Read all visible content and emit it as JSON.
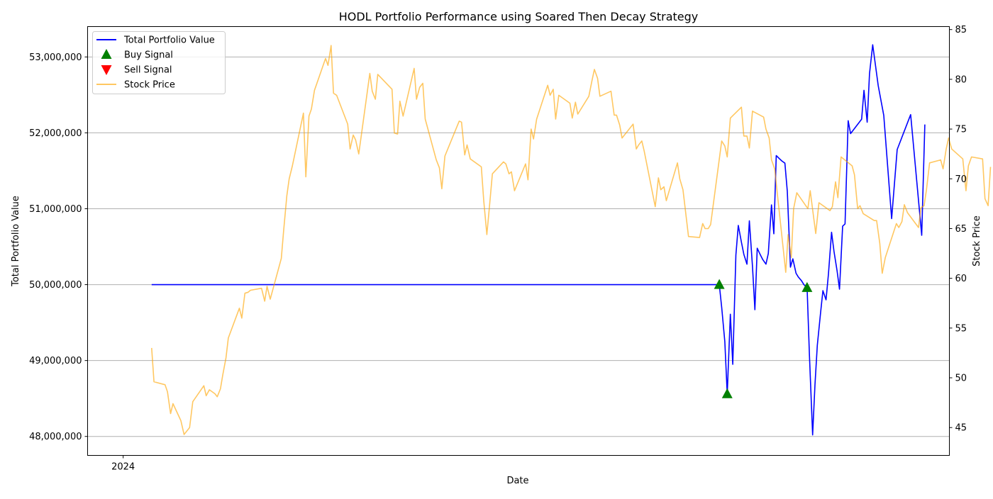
{
  "chart_data": {
    "type": "line",
    "title": "HODL Portfolio Performance using Soared Then Decay Strategy",
    "xlabel": "Date",
    "ylabel": "Total Portfolio Value",
    "ylabel_right": "Stock Price",
    "x_tick_labels": [
      "2024"
    ],
    "ylim": [
      47750000,
      53400000
    ],
    "ylim_right": [
      42.2,
      85.3
    ],
    "y_ticks": [
      48000000,
      49000000,
      50000000,
      51000000,
      52000000,
      53000000
    ],
    "y_tick_labels": [
      "48,000,000",
      "49,000,000",
      "50,000,000",
      "51,000,000",
      "52,000,000",
      "53,000,000"
    ],
    "y_right_ticks": [
      45,
      50,
      55,
      60,
      65,
      70,
      75,
      80,
      85
    ],
    "y_right_tick_labels": [
      "45",
      "50",
      "55",
      "60",
      "65",
      "70",
      "75",
      "80",
      "85"
    ],
    "xlim": [
      -0.045,
      1.045
    ],
    "grid": "horizontal",
    "legend_position": "top-left",
    "legend": [
      {
        "label": "Total Portfolio Value",
        "color": "#0000ff",
        "kind": "line"
      },
      {
        "label": "Buy Signal",
        "color": "#008000",
        "kind": "triangle-up"
      },
      {
        "label": "Sell Signal",
        "color": "#ff0000",
        "kind": "triangle-down"
      },
      {
        "label": "Stock Price",
        "color": "#ffa500",
        "kind": "line"
      }
    ],
    "series": [
      {
        "name": "Total Portfolio Value",
        "axis": "left",
        "color": "#0000ff",
        "points": [
          [
            0.036,
            50000000
          ],
          [
            0.754,
            50000000
          ],
          [
            0.757,
            49700000
          ],
          [
            0.761,
            49250000
          ],
          [
            0.764,
            48560000
          ],
          [
            0.768,
            49610000
          ],
          [
            0.771,
            48950000
          ],
          [
            0.775,
            50390000
          ],
          [
            0.778,
            50780000
          ],
          [
            0.782,
            50560000
          ],
          [
            0.785,
            50400000
          ],
          [
            0.789,
            50270000
          ],
          [
            0.792,
            50840000
          ],
          [
            0.796,
            50240000
          ],
          [
            0.799,
            49670000
          ],
          [
            0.802,
            50480000
          ],
          [
            0.806,
            50390000
          ],
          [
            0.809,
            50330000
          ],
          [
            0.813,
            50270000
          ],
          [
            0.816,
            50410000
          ],
          [
            0.82,
            51050000
          ],
          [
            0.823,
            50670000
          ],
          [
            0.826,
            51700000
          ],
          [
            0.83,
            51660000
          ],
          [
            0.833,
            51630000
          ],
          [
            0.837,
            51600000
          ],
          [
            0.84,
            51230000
          ],
          [
            0.844,
            50230000
          ],
          [
            0.847,
            50340000
          ],
          [
            0.851,
            50150000
          ],
          [
            0.854,
            50100000
          ],
          [
            0.858,
            50050000
          ],
          [
            0.861,
            50000000
          ],
          [
            0.865,
            49960000
          ],
          [
            0.868,
            49070000
          ],
          [
            0.872,
            48020000
          ],
          [
            0.875,
            48680000
          ],
          [
            0.878,
            49200000
          ],
          [
            0.882,
            49620000
          ],
          [
            0.885,
            49920000
          ],
          [
            0.889,
            49800000
          ],
          [
            0.892,
            50140000
          ],
          [
            0.896,
            50690000
          ],
          [
            0.899,
            50440000
          ],
          [
            0.903,
            50180000
          ],
          [
            0.906,
            49940000
          ],
          [
            0.91,
            50770000
          ],
          [
            0.913,
            50800000
          ],
          [
            0.917,
            52160000
          ],
          [
            0.92,
            51990000
          ],
          [
            0.934,
            52180000
          ],
          [
            0.937,
            52560000
          ],
          [
            0.941,
            52140000
          ],
          [
            0.944,
            52780000
          ],
          [
            0.948,
            53160000
          ],
          [
            0.955,
            52620000
          ],
          [
            0.962,
            52230000
          ],
          [
            0.972,
            50870000
          ],
          [
            0.979,
            51780000
          ],
          [
            0.996,
            52240000
          ],
          [
            1.01,
            50650000
          ],
          [
            1.014,
            52110000
          ]
        ]
      },
      {
        "name": "Stock Price",
        "axis": "right",
        "color": "#ffa500",
        "points": [
          [
            0.036,
            53.0
          ],
          [
            0.039,
            49.6
          ],
          [
            0.053,
            49.3
          ],
          [
            0.056,
            48.6
          ],
          [
            0.06,
            46.4
          ],
          [
            0.063,
            47.4
          ],
          [
            0.073,
            45.7
          ],
          [
            0.077,
            44.3
          ],
          [
            0.084,
            45.0
          ],
          [
            0.088,
            47.6
          ],
          [
            0.102,
            49.2
          ],
          [
            0.105,
            48.2
          ],
          [
            0.109,
            48.8
          ],
          [
            0.116,
            48.4
          ],
          [
            0.119,
            48.1
          ],
          [
            0.123,
            48.9
          ],
          [
            0.126,
            50.3
          ],
          [
            0.13,
            52.0
          ],
          [
            0.133,
            54.0
          ],
          [
            0.147,
            57.0
          ],
          [
            0.15,
            56.0
          ],
          [
            0.154,
            58.5
          ],
          [
            0.158,
            58.6
          ],
          [
            0.161,
            58.8
          ],
          [
            0.175,
            59.0
          ],
          [
            0.179,
            57.7
          ],
          [
            0.182,
            59.2
          ],
          [
            0.186,
            57.9
          ],
          [
            0.2,
            62.0
          ],
          [
            0.203,
            64.8
          ],
          [
            0.207,
            68.3
          ],
          [
            0.21,
            70.0
          ],
          [
            0.214,
            71.3
          ],
          [
            0.228,
            76.6
          ],
          [
            0.231,
            70.2
          ],
          [
            0.235,
            76.3
          ],
          [
            0.238,
            77.0
          ],
          [
            0.242,
            78.9
          ],
          [
            0.256,
            82.1
          ],
          [
            0.259,
            81.4
          ],
          [
            0.263,
            83.4
          ],
          [
            0.266,
            78.6
          ],
          [
            0.27,
            78.4
          ],
          [
            0.284,
            75.5
          ],
          [
            0.287,
            73.0
          ],
          [
            0.291,
            74.4
          ],
          [
            0.294,
            73.9
          ],
          [
            0.298,
            72.5
          ],
          [
            0.312,
            80.6
          ],
          [
            0.315,
            78.8
          ],
          [
            0.319,
            78.0
          ],
          [
            0.322,
            80.5
          ],
          [
            0.34,
            79.0
          ],
          [
            0.343,
            74.6
          ],
          [
            0.347,
            74.5
          ],
          [
            0.35,
            77.8
          ],
          [
            0.354,
            76.3
          ],
          [
            0.368,
            81.1
          ],
          [
            0.371,
            78.0
          ],
          [
            0.375,
            79.2
          ],
          [
            0.379,
            79.6
          ],
          [
            0.382,
            76.0
          ],
          [
            0.396,
            71.9
          ],
          [
            0.4,
            71.1
          ],
          [
            0.403,
            69.0
          ],
          [
            0.407,
            72.3
          ],
          [
            0.425,
            75.8
          ],
          [
            0.428,
            75.7
          ],
          [
            0.432,
            72.4
          ],
          [
            0.435,
            73.4
          ],
          [
            0.439,
            72.0
          ],
          [
            0.453,
            71.2
          ],
          [
            0.456,
            67.8
          ],
          [
            0.46,
            64.4
          ],
          [
            0.463,
            67.0
          ],
          [
            0.467,
            70.5
          ],
          [
            0.481,
            71.7
          ],
          [
            0.484,
            71.5
          ],
          [
            0.488,
            70.5
          ],
          [
            0.491,
            70.7
          ],
          [
            0.495,
            68.8
          ],
          [
            0.509,
            71.5
          ],
          [
            0.512,
            69.9
          ],
          [
            0.516,
            75.0
          ],
          [
            0.519,
            74.0
          ],
          [
            0.523,
            76.0
          ],
          [
            0.537,
            79.4
          ],
          [
            0.54,
            78.4
          ],
          [
            0.544,
            79.0
          ],
          [
            0.547,
            76.0
          ],
          [
            0.551,
            78.4
          ],
          [
            0.565,
            77.6
          ],
          [
            0.568,
            76.1
          ],
          [
            0.572,
            77.7
          ],
          [
            0.575,
            76.5
          ],
          [
            0.589,
            78.3
          ],
          [
            0.593,
            79.9
          ],
          [
            0.596,
            81.0
          ],
          [
            0.6,
            80.1
          ],
          [
            0.603,
            78.3
          ],
          [
            0.617,
            78.8
          ],
          [
            0.621,
            76.4
          ],
          [
            0.624,
            76.4
          ],
          [
            0.628,
            75.4
          ],
          [
            0.631,
            74.1
          ],
          [
            0.645,
            75.5
          ],
          [
            0.649,
            73.0
          ],
          [
            0.652,
            73.4
          ],
          [
            0.656,
            73.8
          ],
          [
            0.659,
            72.8
          ],
          [
            0.673,
            67.2
          ],
          [
            0.677,
            70.1
          ],
          [
            0.68,
            68.9
          ],
          [
            0.684,
            69.2
          ],
          [
            0.687,
            67.8
          ],
          [
            0.701,
            71.6
          ],
          [
            0.704,
            70.0
          ],
          [
            0.708,
            68.9
          ],
          [
            0.715,
            64.2
          ],
          [
            0.729,
            64.1
          ],
          [
            0.733,
            65.5
          ],
          [
            0.736,
            65.0
          ],
          [
            0.74,
            65.0
          ],
          [
            0.743,
            65.4
          ],
          [
            0.757,
            73.8
          ],
          [
            0.761,
            73.3
          ],
          [
            0.764,
            72.2
          ],
          [
            0.768,
            76.1
          ],
          [
            0.782,
            77.2
          ],
          [
            0.785,
            74.3
          ],
          [
            0.789,
            74.3
          ],
          [
            0.792,
            73.1
          ],
          [
            0.796,
            76.8
          ],
          [
            0.81,
            76.2
          ],
          [
            0.813,
            75.0
          ],
          [
            0.817,
            74.1
          ],
          [
            0.82,
            71.9
          ],
          [
            0.824,
            71.0
          ],
          [
            0.838,
            60.6
          ],
          [
            0.841,
            64.4
          ],
          [
            0.845,
            62.1
          ],
          [
            0.848,
            67.0
          ],
          [
            0.852,
            68.6
          ],
          [
            0.866,
            67.0
          ],
          [
            0.869,
            68.8
          ],
          [
            0.873,
            66.3
          ],
          [
            0.876,
            64.5
          ],
          [
            0.88,
            67.6
          ],
          [
            0.894,
            66.8
          ],
          [
            0.897,
            67.2
          ],
          [
            0.901,
            69.7
          ],
          [
            0.904,
            68.1
          ],
          [
            0.908,
            72.2
          ],
          [
            0.922,
            71.3
          ],
          [
            0.925,
            70.4
          ],
          [
            0.929,
            67.0
          ],
          [
            0.932,
            67.3
          ],
          [
            0.936,
            66.5
          ],
          [
            0.95,
            65.8
          ],
          [
            0.953,
            65.8
          ],
          [
            0.957,
            63.5
          ],
          [
            0.96,
            60.5
          ],
          [
            0.964,
            62.1
          ],
          [
            0.978,
            65.5
          ],
          [
            0.981,
            65.1
          ],
          [
            0.985,
            65.7
          ],
          [
            0.988,
            67.4
          ],
          [
            0.992,
            66.6
          ],
          [
            1.006,
            65.1
          ],
          [
            1.009,
            67.1
          ],
          [
            1.013,
            67.3
          ],
          [
            1.016,
            68.9
          ],
          [
            1.02,
            71.6
          ],
          [
            1.034,
            71.9
          ],
          [
            1.037,
            71.0
          ],
          [
            1.041,
            73.0
          ],
          [
            1.044,
            74.1
          ],
          [
            1.048,
            73.0
          ],
          [
            1.062,
            72.0
          ],
          [
            1.066,
            68.8
          ],
          [
            1.069,
            71.3
          ],
          [
            1.073,
            72.2
          ],
          [
            1.087,
            72.0
          ],
          [
            1.09,
            68.0
          ],
          [
            1.094,
            67.3
          ],
          [
            1.097,
            71.2
          ]
        ]
      }
    ],
    "buy_signals": [
      [
        0.754,
        50000000
      ],
      [
        0.764,
        48560000
      ],
      [
        0.865,
        49960000
      ]
    ],
    "sell_signals": []
  }
}
